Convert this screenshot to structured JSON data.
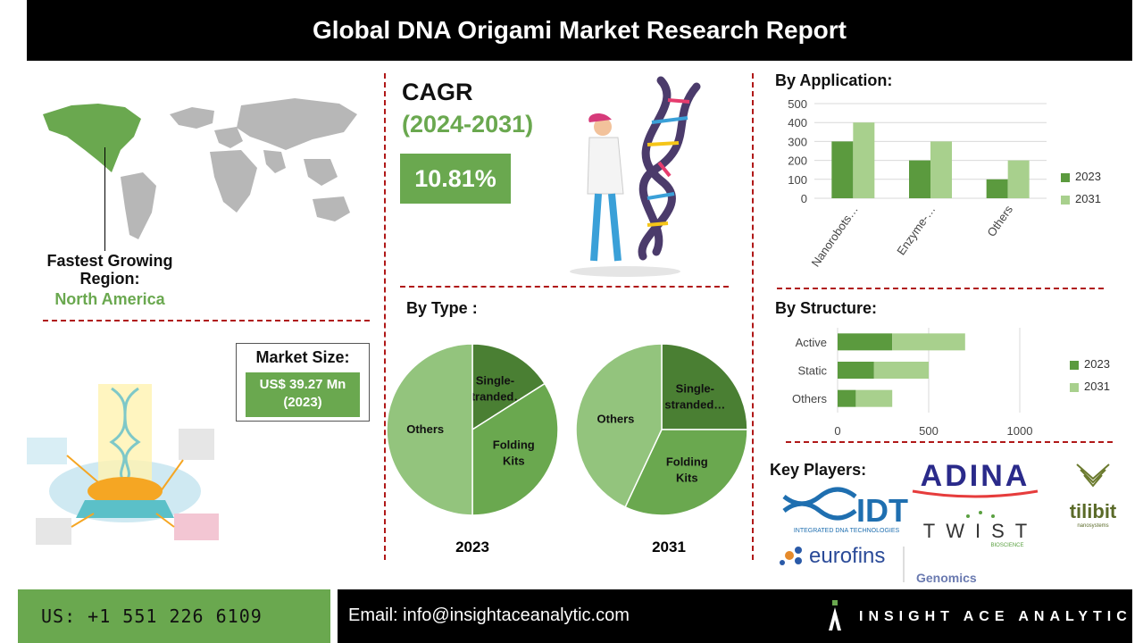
{
  "header": {
    "title": "Global DNA Origami Market Research Report"
  },
  "region": {
    "label": "Fastest Growing Region:",
    "value": "North America"
  },
  "cagr": {
    "label": "CAGR",
    "period": "(2024-2031)",
    "value": "10.81%"
  },
  "market_size": {
    "label": "Market Size:",
    "value": "US$ 39.27 Mn",
    "year": "(2023)"
  },
  "sections": {
    "application": "By Application:",
    "type": "By Type :",
    "structure": "By Structure:",
    "key_players": "Key Players:"
  },
  "key_players": [
    "ADINA",
    "tilibit",
    "IDT",
    "INTEGRATED DNA TECHNOLOGIES",
    "TWIST",
    "BIOSCIENCE",
    "eurofins",
    "Genomics",
    "nanosystems"
  ],
  "footer": {
    "phone": "US: +1 551 226 6109",
    "email": "Email: info@insightaceanalytic.com",
    "brand": "INSIGHT ACE ANALYTIC"
  },
  "colors": {
    "dark_green": "#5b9a3e",
    "light_green": "#a8d08d",
    "mid_green": "#6aa84f",
    "pie_dark": "#4a7f33",
    "pie_mid": "#6aa84f",
    "pie_light": "#93c47d",
    "dash": "#b01818"
  },
  "chart_data": [
    {
      "type": "bar",
      "id": "application",
      "categories": [
        "Nanorobots…",
        "Enzyme-…",
        "Others"
      ],
      "series": [
        {
          "name": "2023",
          "values": [
            300,
            200,
            100
          ]
        },
        {
          "name": "2031",
          "values": [
            400,
            300,
            200
          ]
        }
      ],
      "ylim": [
        0,
        500
      ],
      "yticks": [
        "0",
        "100",
        "200",
        "300",
        "400",
        "500"
      ],
      "grid": true,
      "legend": "right"
    },
    {
      "type": "bar",
      "id": "structure",
      "orientation": "horizontal-stacked",
      "categories": [
        "Active",
        "Static",
        "Others"
      ],
      "series": [
        {
          "name": "2023",
          "values": [
            300,
            200,
            100
          ]
        },
        {
          "name": "2031",
          "values": [
            400,
            300,
            200
          ]
        }
      ],
      "xlim": [
        0,
        1000
      ],
      "xticks": [
        "0",
        "500",
        "1000"
      ],
      "grid": true,
      "legend": "right"
    },
    {
      "type": "pie",
      "id": "type-2023",
      "label": "2023",
      "slices": [
        {
          "name": "Single-stranded…",
          "value": 16
        },
        {
          "name": "Folding Kits",
          "value": 34
        },
        {
          "name": "Others",
          "value": 50
        }
      ]
    },
    {
      "type": "pie",
      "id": "type-2031",
      "label": "2031",
      "slices": [
        {
          "name": "Single-stranded…",
          "value": 25
        },
        {
          "name": "Folding Kits",
          "value": 32
        },
        {
          "name": "Others",
          "value": 43
        }
      ]
    }
  ]
}
